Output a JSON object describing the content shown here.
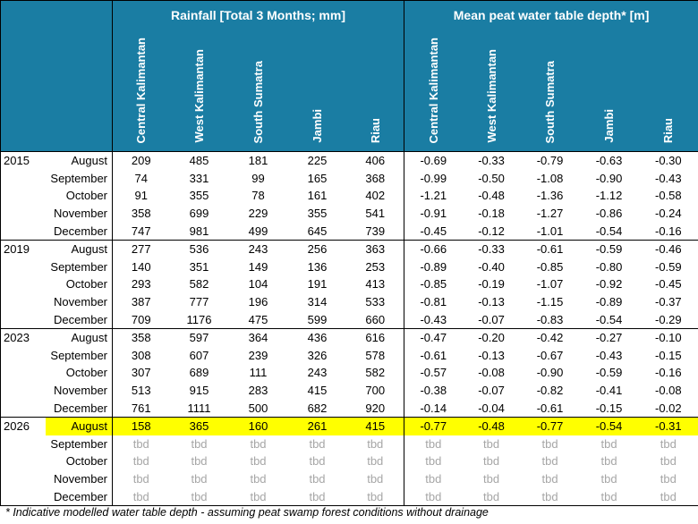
{
  "header": {
    "rainfall_title": "Rainfall [Total 3 Months; mm]",
    "depth_title": "Mean peat water table depth* [m]",
    "regions": [
      "Central Kalimantan",
      "West Kalimantan",
      "South Sumatra",
      "Jambi",
      "Riau"
    ]
  },
  "blocks": [
    {
      "year": "2015",
      "rows": [
        {
          "month": "August",
          "rain": [
            "209",
            "485",
            "181",
            "225",
            "406"
          ],
          "depth": [
            "-0.69",
            "-0.33",
            "-0.79",
            "-0.63",
            "-0.30"
          ]
        },
        {
          "month": "September",
          "rain": [
            "74",
            "331",
            "99",
            "165",
            "368"
          ],
          "depth": [
            "-0.99",
            "-0.50",
            "-1.08",
            "-0.90",
            "-0.43"
          ]
        },
        {
          "month": "October",
          "rain": [
            "91",
            "355",
            "78",
            "161",
            "402"
          ],
          "depth": [
            "-1.21",
            "-0.48",
            "-1.36",
            "-1.12",
            "-0.58"
          ]
        },
        {
          "month": "November",
          "rain": [
            "358",
            "699",
            "229",
            "355",
            "541"
          ],
          "depth": [
            "-0.91",
            "-0.18",
            "-1.27",
            "-0.86",
            "-0.24"
          ]
        },
        {
          "month": "December",
          "rain": [
            "747",
            "981",
            "499",
            "645",
            "739"
          ],
          "depth": [
            "-0.45",
            "-0.12",
            "-1.01",
            "-0.54",
            "-0.16"
          ]
        }
      ]
    },
    {
      "year": "2019",
      "rows": [
        {
          "month": "August",
          "rain": [
            "277",
            "536",
            "243",
            "256",
            "363"
          ],
          "depth": [
            "-0.66",
            "-0.33",
            "-0.61",
            "-0.59",
            "-0.46"
          ]
        },
        {
          "month": "September",
          "rain": [
            "140",
            "351",
            "149",
            "136",
            "253"
          ],
          "depth": [
            "-0.89",
            "-0.40",
            "-0.85",
            "-0.80",
            "-0.59"
          ]
        },
        {
          "month": "October",
          "rain": [
            "293",
            "582",
            "104",
            "191",
            "413"
          ],
          "depth": [
            "-0.85",
            "-0.19",
            "-1.07",
            "-0.92",
            "-0.45"
          ]
        },
        {
          "month": "November",
          "rain": [
            "387",
            "777",
            "196",
            "314",
            "533"
          ],
          "depth": [
            "-0.81",
            "-0.13",
            "-1.15",
            "-0.89",
            "-0.37"
          ]
        },
        {
          "month": "December",
          "rain": [
            "709",
            "1176",
            "475",
            "599",
            "660"
          ],
          "depth": [
            "-0.43",
            "-0.07",
            "-0.83",
            "-0.54",
            "-0.29"
          ]
        }
      ]
    },
    {
      "year": "2023",
      "rows": [
        {
          "month": "August",
          "rain": [
            "358",
            "597",
            "364",
            "436",
            "616"
          ],
          "depth": [
            "-0.47",
            "-0.20",
            "-0.42",
            "-0.27",
            "-0.10"
          ]
        },
        {
          "month": "September",
          "rain": [
            "308",
            "607",
            "239",
            "326",
            "578"
          ],
          "depth": [
            "-0.61",
            "-0.13",
            "-0.67",
            "-0.43",
            "-0.15"
          ]
        },
        {
          "month": "October",
          "rain": [
            "307",
            "689",
            "111",
            "243",
            "582"
          ],
          "depth": [
            "-0.57",
            "-0.08",
            "-0.90",
            "-0.59",
            "-0.16"
          ]
        },
        {
          "month": "November",
          "rain": [
            "513",
            "915",
            "283",
            "415",
            "700"
          ],
          "depth": [
            "-0.38",
            "-0.07",
            "-0.82",
            "-0.41",
            "-0.08"
          ]
        },
        {
          "month": "December",
          "rain": [
            "761",
            "1111",
            "500",
            "682",
            "920"
          ],
          "depth": [
            "-0.14",
            "-0.04",
            "-0.61",
            "-0.15",
            "-0.02"
          ]
        }
      ]
    },
    {
      "year": "2026",
      "rows": [
        {
          "month": "August",
          "rain": [
            "158",
            "365",
            "160",
            "261",
            "415"
          ],
          "depth": [
            "-0.77",
            "-0.48",
            "-0.77",
            "-0.54",
            "-0.31"
          ],
          "highlight": true
        },
        {
          "month": "September",
          "rain": [
            "tbd",
            "tbd",
            "tbd",
            "tbd",
            "tbd"
          ],
          "depth": [
            "tbd",
            "tbd",
            "tbd",
            "tbd",
            "tbd"
          ],
          "tbd": true
        },
        {
          "month": "October",
          "rain": [
            "tbd",
            "tbd",
            "tbd",
            "tbd",
            "tbd"
          ],
          "depth": [
            "tbd",
            "tbd",
            "tbd",
            "tbd",
            "tbd"
          ],
          "tbd": true
        },
        {
          "month": "November",
          "rain": [
            "tbd",
            "tbd",
            "tbd",
            "tbd",
            "tbd"
          ],
          "depth": [
            "tbd",
            "tbd",
            "tbd",
            "tbd",
            "tbd"
          ],
          "tbd": true
        },
        {
          "month": "December",
          "rain": [
            "tbd",
            "tbd",
            "tbd",
            "tbd",
            "tbd"
          ],
          "depth": [
            "tbd",
            "tbd",
            "tbd",
            "tbd",
            "tbd"
          ],
          "tbd": true
        }
      ]
    }
  ],
  "colors": {
    "header_bg": "#1a7da3",
    "highlight": "#ffff00",
    "tbd_text": "#a6a6a6"
  },
  "footnote": "* Indicative modelled water table depth - assuming peat swamp forest conditions without drainage"
}
